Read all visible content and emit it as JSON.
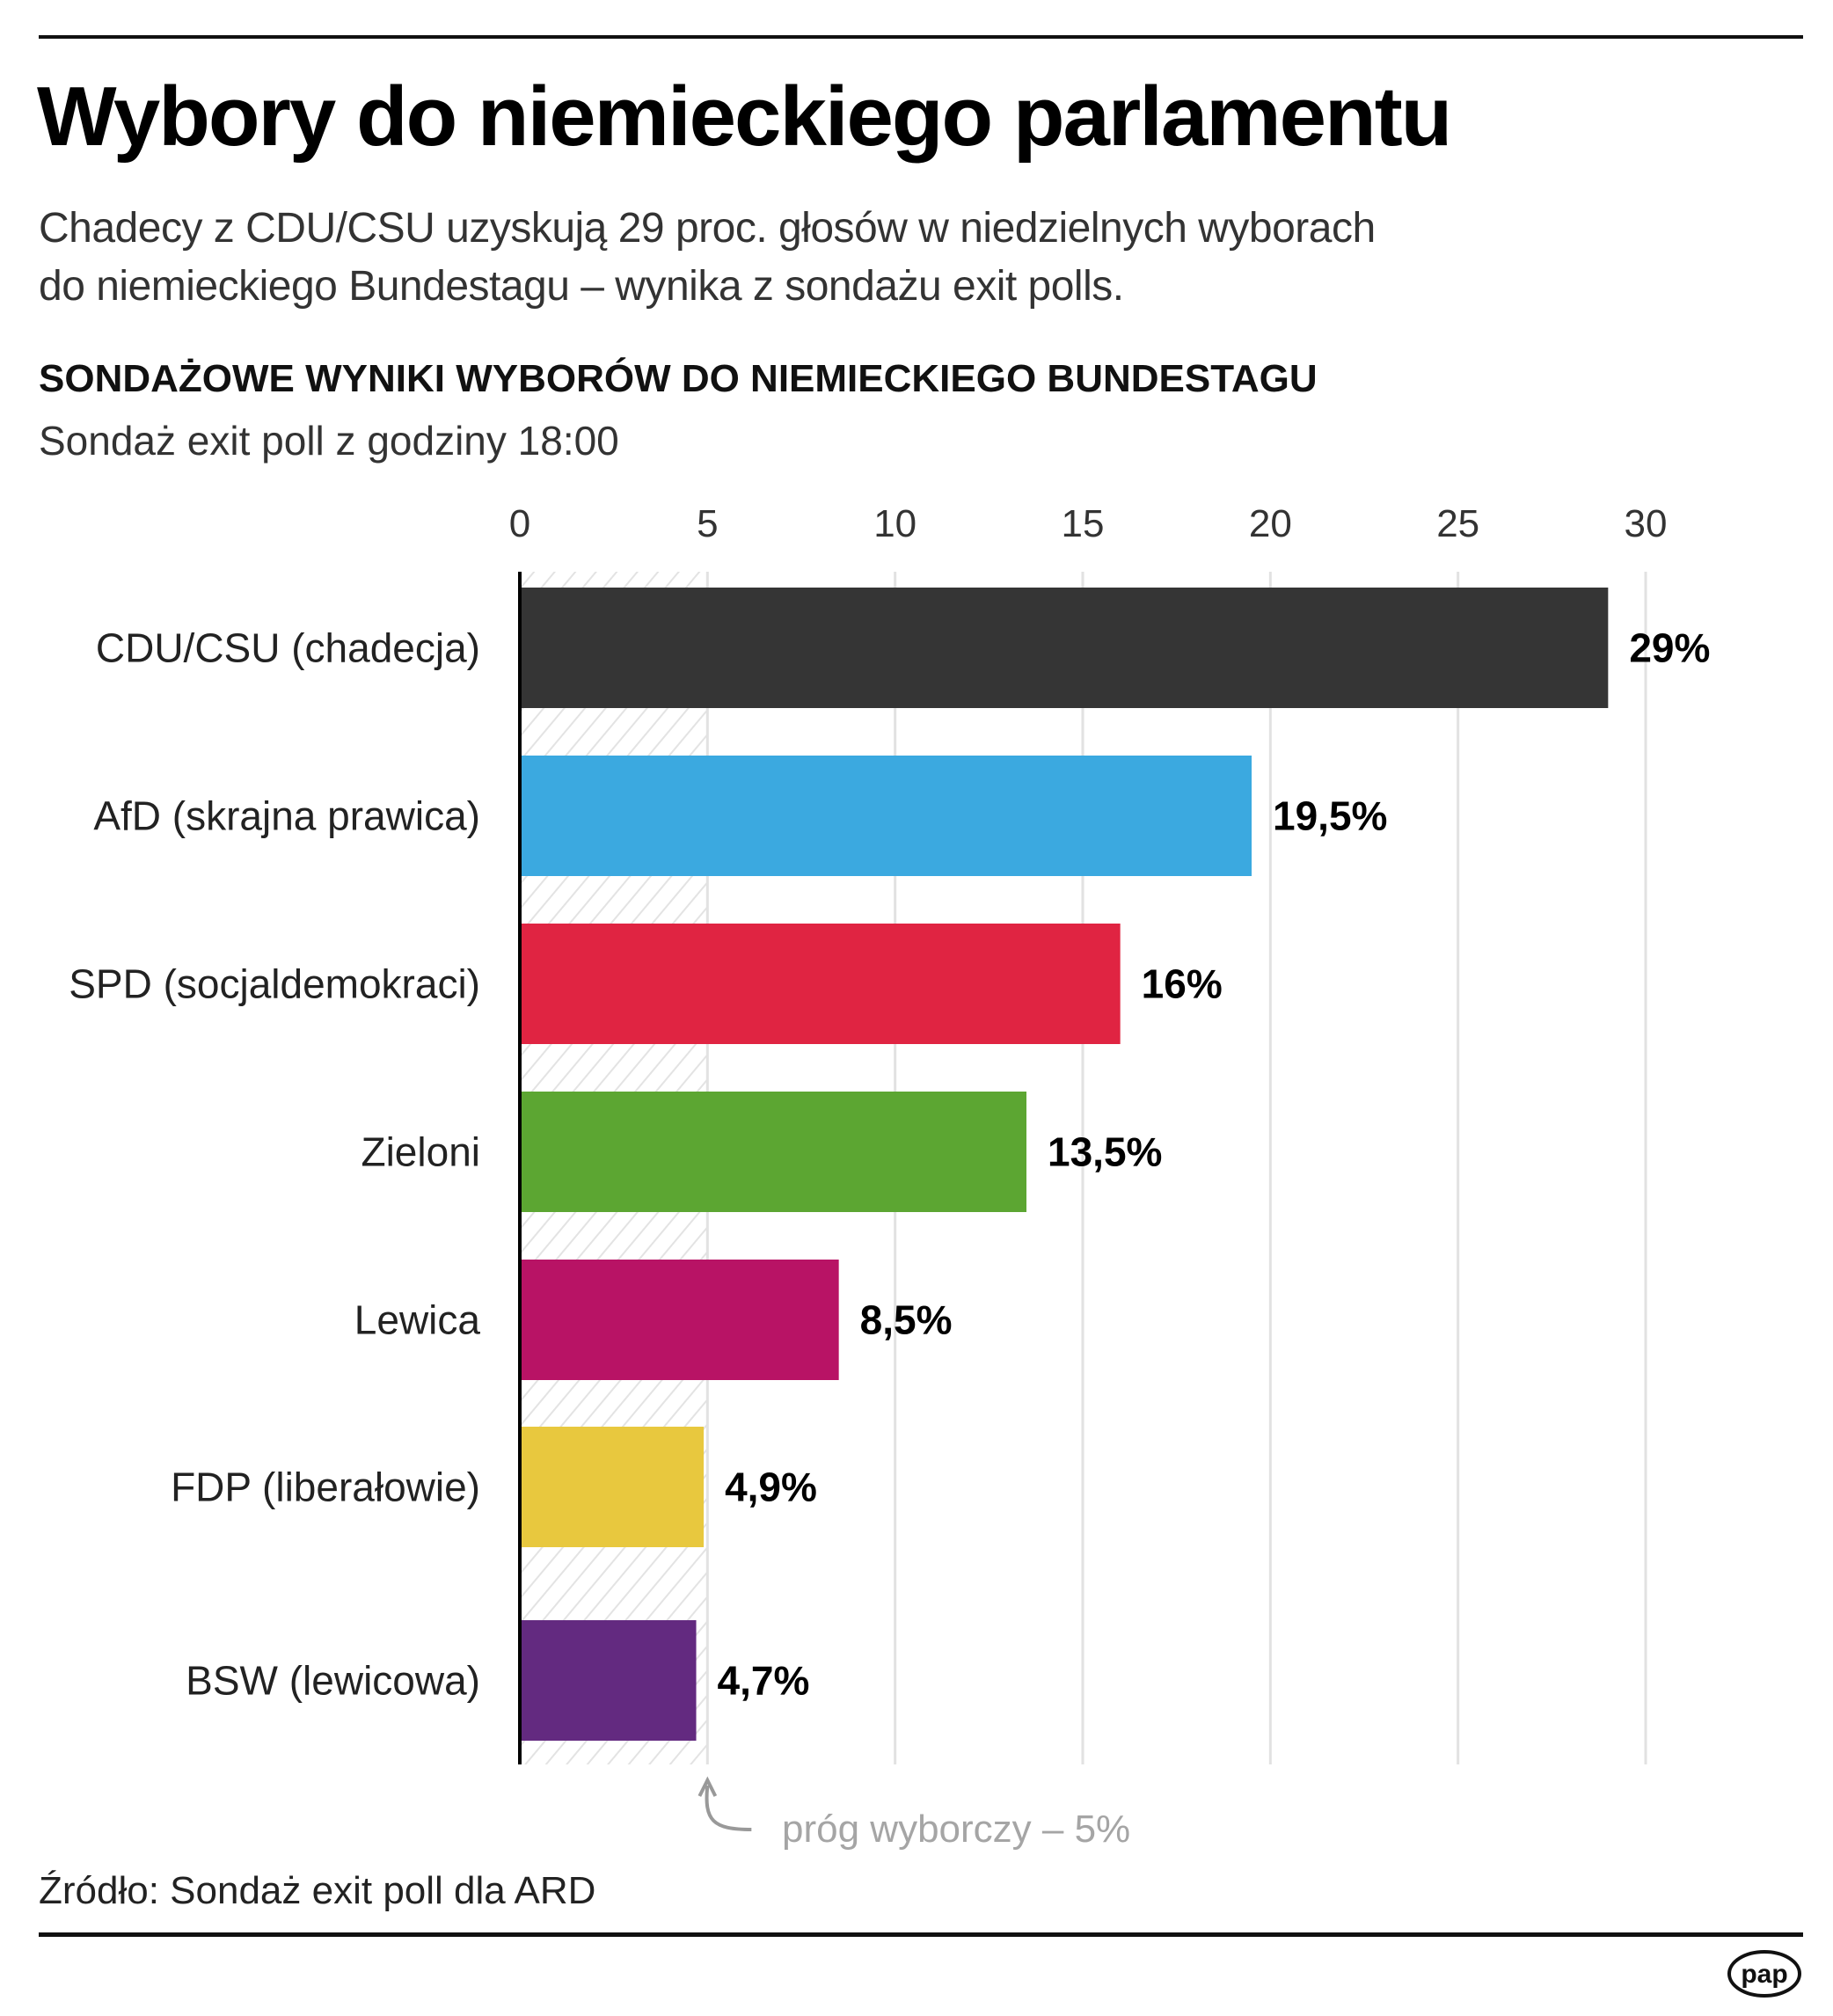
{
  "header": {
    "title": "Wybory do niemieckiego parlamentu",
    "subtitle_lines": [
      "Chadecy z CDU/CSU uzyskują 29 proc. głosów w niedzielnych wyborach",
      "do niemieckiego Bundestagu – wynika z sondażu exit polls."
    ]
  },
  "chart_data": {
    "type": "bar",
    "orientation": "horizontal",
    "title": "SONDAŻOWE WYNIKI WYBORÓW DO NIEMIECKIEGO BUNDESTAGU",
    "subtitle": "Sondaż exit poll z godziny 18:00",
    "categories": [
      "CDU/CSU (chadecja)",
      "AfD (skrajna prawica)",
      "SPD (socjaldemokraci)",
      "Zieloni",
      "Lewica",
      "FDP (liberałowie)",
      "BSW (lewicowa)"
    ],
    "values": [
      29,
      19.5,
      16,
      13.5,
      8.5,
      4.9,
      4.7
    ],
    "data_labels": [
      "29%",
      "19,5%",
      "16%",
      "13,5%",
      "8,5%",
      "4,9%",
      "4,7%"
    ],
    "colors": [
      "#353535",
      "#3ba9e0",
      "#e02442",
      "#5ca632",
      "#b81365",
      "#e8c83e",
      "#632a80"
    ],
    "xlim": [
      0,
      30
    ],
    "xticks": [
      "0",
      "5",
      "10",
      "15",
      "20",
      "25",
      "30"
    ],
    "grid": true,
    "threshold": {
      "value": 5,
      "label": "próg wyborczy – 5%"
    }
  },
  "footer": {
    "source": "Źródło: Sondaż exit poll dla ARD",
    "logo": "pap"
  }
}
